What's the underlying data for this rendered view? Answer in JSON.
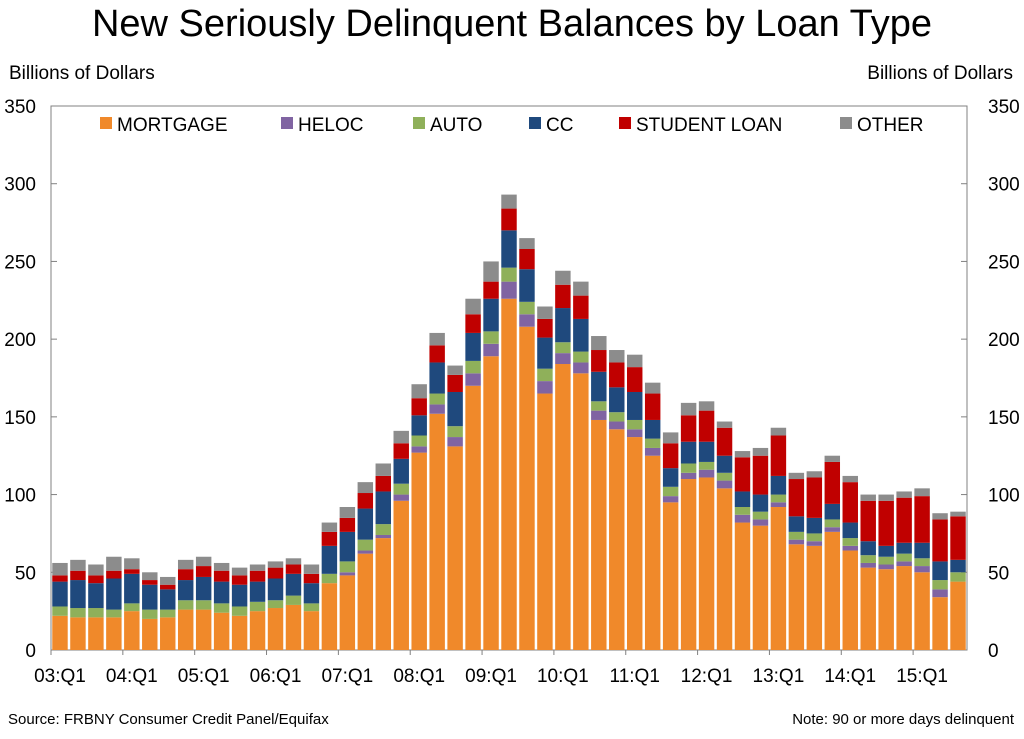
{
  "title": "New Seriously Delinquent Balances by Loan Type",
  "y_unit_left": "Billions of Dollars",
  "y_unit_right": "Billions of Dollars",
  "source": "Source: FRBNY Consumer Credit Panel/Equifax",
  "note": "Note:  90 or more days delinquent",
  "colors": {
    "MORTGAGE": "#f0892a",
    "HELOC": "#8064a2",
    "AUTO": "#8fb05a",
    "CC": "#1f497d",
    "STUDENT LOAN": "#c00000",
    "OTHER": "#8c8c8c"
  },
  "chart_data": {
    "type": "bar",
    "stacked": true,
    "ylim": [
      0,
      350
    ],
    "yticks": [
      0,
      50,
      100,
      150,
      200,
      250,
      300,
      350
    ],
    "x_tick_labels": [
      "03:Q1",
      "04:Q1",
      "05:Q1",
      "06:Q1",
      "07:Q1",
      "08:Q1",
      "09:Q1",
      "10:Q1",
      "11:Q1",
      "12:Q1",
      "13:Q1",
      "14:Q1",
      "15:Q1"
    ],
    "legend_position": "top",
    "categories": [
      "03:Q1",
      "03:Q2",
      "03:Q3",
      "03:Q4",
      "04:Q1",
      "04:Q2",
      "04:Q3",
      "04:Q4",
      "05:Q1",
      "05:Q2",
      "05:Q3",
      "05:Q4",
      "06:Q1",
      "06:Q2",
      "06:Q3",
      "06:Q4",
      "07:Q1",
      "07:Q2",
      "07:Q3",
      "07:Q4",
      "08:Q1",
      "08:Q2",
      "08:Q3",
      "08:Q4",
      "09:Q1",
      "09:Q2",
      "09:Q3",
      "09:Q4",
      "10:Q1",
      "10:Q2",
      "10:Q3",
      "10:Q4",
      "11:Q1",
      "11:Q2",
      "11:Q3",
      "11:Q4",
      "12:Q1",
      "12:Q2",
      "12:Q3",
      "12:Q4",
      "13:Q1",
      "13:Q2",
      "13:Q3",
      "13:Q4",
      "14:Q1",
      "14:Q2",
      "14:Q3",
      "14:Q4",
      "15:Q1",
      "15:Q2",
      "15:Q3"
    ],
    "series": [
      {
        "name": "MORTGAGE",
        "values": [
          22,
          21,
          21,
          21,
          25,
          20,
          21,
          26,
          26,
          24,
          22,
          25,
          27,
          29,
          25,
          43,
          48,
          62,
          72,
          96,
          127,
          152,
          131,
          170,
          189,
          226,
          208,
          165,
          184,
          178,
          148,
          142,
          137,
          125,
          95,
          110,
          111,
          104,
          82,
          80,
          92,
          68,
          67,
          76,
          64,
          53,
          52,
          54,
          50,
          34,
          44
        ]
      },
      {
        "name": "HELOC",
        "values": [
          0,
          0,
          0,
          0,
          0,
          0,
          0,
          0,
          0,
          0,
          0,
          0,
          0,
          0,
          0,
          0,
          2,
          2,
          2,
          4,
          4,
          6,
          6,
          8,
          8,
          11,
          8,
          8,
          7,
          7,
          6,
          5,
          5,
          5,
          4,
          4,
          5,
          5,
          5,
          4,
          3,
          3,
          3,
          3,
          3,
          3,
          3,
          3,
          4,
          5,
          0
        ]
      },
      {
        "name": "AUTO",
        "values": [
          6,
          6,
          6,
          5,
          5,
          6,
          5,
          6,
          6,
          6,
          6,
          6,
          5,
          6,
          5,
          6,
          7,
          7,
          7,
          7,
          7,
          7,
          7,
          8,
          8,
          9,
          8,
          8,
          7,
          7,
          6,
          6,
          6,
          6,
          6,
          6,
          5,
          5,
          5,
          5,
          5,
          5,
          5,
          5,
          5,
          5,
          5,
          5,
          5,
          6,
          6
        ]
      },
      {
        "name": "CC",
        "values": [
          16,
          18,
          16,
          20,
          19,
          16,
          13,
          13,
          15,
          14,
          14,
          13,
          14,
          14,
          13,
          18,
          19,
          20,
          21,
          16,
          13,
          20,
          22,
          18,
          21,
          24,
          21,
          20,
          22,
          21,
          19,
          16,
          18,
          12,
          12,
          14,
          13,
          11,
          10,
          11,
          12,
          10,
          10,
          10,
          10,
          9,
          7,
          7,
          10,
          12,
          8
        ]
      },
      {
        "name": "STUDENT LOAN",
        "values": [
          4,
          6,
          5,
          5,
          3,
          3,
          3,
          7,
          7,
          7,
          6,
          7,
          7,
          6,
          6,
          9,
          9,
          10,
          10,
          10,
          11,
          11,
          11,
          12,
          11,
          14,
          13,
          12,
          15,
          15,
          14,
          16,
          16,
          17,
          16,
          17,
          20,
          18,
          22,
          25,
          26,
          24,
          26,
          27,
          26,
          26,
          29,
          29,
          30,
          27,
          28
        ]
      },
      {
        "name": "OTHER",
        "values": [
          8,
          7,
          7,
          9,
          7,
          5,
          5,
          6,
          6,
          5,
          5,
          4,
          4,
          4,
          6,
          6,
          7,
          7,
          8,
          8,
          9,
          8,
          6,
          10,
          13,
          9,
          7,
          8,
          9,
          9,
          9,
          8,
          8,
          7,
          7,
          8,
          6,
          4,
          4,
          5,
          5,
          4,
          4,
          4,
          4,
          4,
          4,
          4,
          5,
          4,
          3
        ]
      }
    ]
  }
}
